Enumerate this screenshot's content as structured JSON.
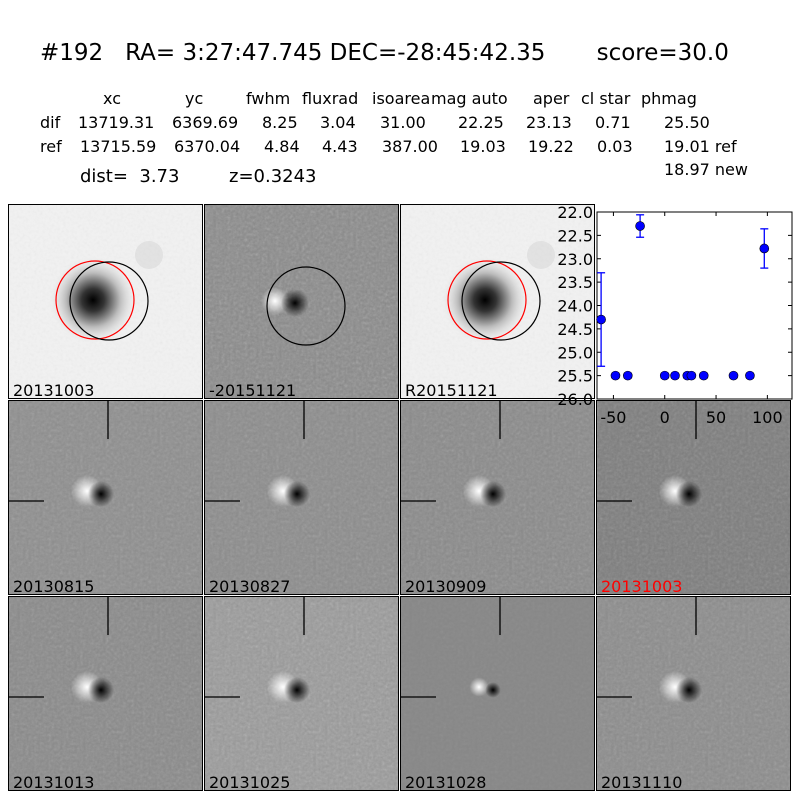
{
  "header": {
    "title": "#192   RA= 3:27:47.745 DEC=-28:45:42.35       score=30.0",
    "columns": [
      "xc",
      "yc",
      "fwhm",
      "fluxrad",
      "isoarea",
      "mag auto",
      "aper",
      "cl star",
      "phmag"
    ],
    "rows": [
      {
        "label": "dif",
        "values": [
          "13719.31",
          "6369.69",
          "8.25",
          "3.04",
          "31.00",
          "22.25",
          "23.13",
          "0.71",
          "25.50"
        ]
      },
      {
        "label": "ref",
        "values": [
          "13715.59",
          "6370.04",
          "4.84",
          "4.43",
          "387.00",
          "19.03",
          "19.22",
          "0.03",
          "19.01 ref"
        ]
      }
    ],
    "phmag_new": "18.97 new",
    "dist": "dist=  3.73",
    "z": "z=0.3243"
  },
  "top_panels": [
    {
      "label": "20131003",
      "type": "ref",
      "circles": [
        "red",
        "black"
      ]
    },
    {
      "label": "-20151121",
      "type": "diff",
      "circles": [
        "black"
      ]
    },
    {
      "label": "R20151121",
      "type": "ref",
      "circles": [
        "red",
        "black"
      ]
    }
  ],
  "stamp_panels": [
    {
      "label": "20130815",
      "label_color": "#000000"
    },
    {
      "label": "20130827",
      "label_color": "#000000"
    },
    {
      "label": "20130909",
      "label_color": "#000000"
    },
    {
      "label": "20131003",
      "label_color": "#ff0000"
    },
    {
      "label": "20131013",
      "label_color": "#000000"
    },
    {
      "label": "20131025",
      "label_color": "#000000"
    },
    {
      "label": "20131028",
      "label_color": "#000000"
    },
    {
      "label": "20131110",
      "label_color": "#000000"
    }
  ],
  "chart_data": {
    "type": "scatter",
    "title": "",
    "xlabel": "",
    "ylabel": "",
    "xlim": [
      -66,
      124
    ],
    "ylim": [
      26.0,
      22.0
    ],
    "y_inverted": true,
    "xticks": [
      -50,
      0,
      50,
      100
    ],
    "xtick_labels": [
      "-50",
      "0",
      "50",
      "100"
    ],
    "yticks": [
      22.0,
      22.5,
      23.0,
      23.5,
      24.0,
      24.5,
      25.0,
      25.5,
      26.0
    ],
    "ytick_labels": [
      "22.0",
      "22.5",
      "23.0",
      "23.5",
      "24.0",
      "24.5",
      "25.0",
      "25.5",
      "26.0"
    ],
    "color": "#0000ff",
    "points": [
      {
        "x": -62,
        "y": 24.3,
        "err": 1.0
      },
      {
        "x": -48,
        "y": 25.5,
        "err": 0.05
      },
      {
        "x": -36,
        "y": 25.5,
        "err": 0.05
      },
      {
        "x": -24,
        "y": 22.3,
        "err": 0.24
      },
      {
        "x": 0,
        "y": 25.5,
        "err": 0.05
      },
      {
        "x": 10,
        "y": 25.5,
        "err": 0.05
      },
      {
        "x": 22,
        "y": 25.5,
        "err": 0.05
      },
      {
        "x": 26,
        "y": 25.5,
        "err": 0.05
      },
      {
        "x": 38,
        "y": 25.5,
        "err": 0.05
      },
      {
        "x": 67,
        "y": 25.5,
        "err": 0.05
      },
      {
        "x": 83,
        "y": 25.5,
        "err": 0.05
      },
      {
        "x": 97,
        "y": 22.78,
        "err": 0.42
      }
    ]
  }
}
